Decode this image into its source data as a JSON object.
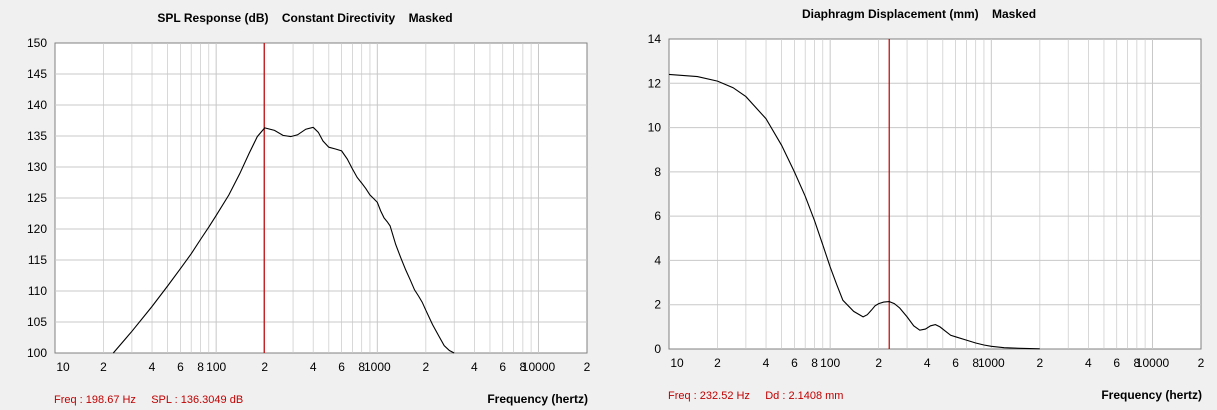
{
  "colors": {
    "background": "#f0f0f0",
    "plot_bg": "#ffffff",
    "grid": "#c8c8c8",
    "curve": "#000000",
    "cursor": "#c00000",
    "readout": "#c00000"
  },
  "chart_data": [
    {
      "type": "line",
      "title": "SPL Response (dB)    Constant Directivity    Masked",
      "xlabel": "Frequency (hertz)",
      "ylabel": "",
      "xscale": "log",
      "xlim": [
        10,
        20000
      ],
      "ylim": [
        100,
        150
      ],
      "grid": true,
      "y_ticks": [
        "150",
        "145",
        "140",
        "135",
        "130",
        "125",
        "120",
        "115",
        "110",
        "105",
        "100"
      ],
      "x_tick_labels": [
        {
          "v": 10,
          "t": "10"
        },
        {
          "v": 20,
          "t": "2"
        },
        {
          "v": 40,
          "t": "4"
        },
        {
          "v": 60,
          "t": "6"
        },
        {
          "v": 80,
          "t": "8"
        },
        {
          "v": 100,
          "t": "100"
        },
        {
          "v": 200,
          "t": "2"
        },
        {
          "v": 400,
          "t": "4"
        },
        {
          "v": 600,
          "t": "6"
        },
        {
          "v": 800,
          "t": "8"
        },
        {
          "v": 1000,
          "t": "1000"
        },
        {
          "v": 2000,
          "t": "2"
        },
        {
          "v": 4000,
          "t": "4"
        },
        {
          "v": 6000,
          "t": "6"
        },
        {
          "v": 8000,
          "t": "8"
        },
        {
          "v": 10000,
          "t": "10000"
        },
        {
          "v": 20000,
          "t": "2"
        }
      ],
      "cursor_x": 198.67,
      "readout": "Freq : 198.67 Hz     SPL : 136.3049 dB",
      "series": [
        {
          "x": [
            23,
            30,
            40,
            50,
            60,
            70,
            80,
            90,
            100,
            120,
            140,
            160,
            180,
            200,
            230,
            260,
            290,
            320,
            360,
            400,
            430,
            460,
            500,
            550,
            600,
            650,
            700,
            750,
            800,
            850,
            900,
            950,
            1000,
            1050,
            1100,
            1150,
            1200,
            1300,
            1400,
            1500,
            1600,
            1700,
            1800,
            1900,
            2000,
            2200,
            2400,
            2600,
            2800,
            3000
          ],
          "y": [
            100,
            103.5,
            107.5,
            110.8,
            113.6,
            116,
            118.3,
            120.3,
            122.2,
            125.5,
            128.9,
            132.2,
            134.9,
            136.3,
            135.9,
            135.1,
            134.9,
            135.2,
            136.1,
            136.4,
            135.6,
            134.2,
            133.2,
            132.9,
            132.6,
            131.3,
            129.7,
            128.3,
            127.4,
            126.5,
            125.5,
            124.9,
            124.3,
            122.9,
            121.8,
            121.2,
            120.5,
            117.5,
            115.3,
            113.4,
            111.8,
            110.2,
            109.2,
            108.2,
            106.9,
            104.6,
            102.8,
            101.2,
            100.4,
            100
          ]
        }
      ]
    },
    {
      "type": "line",
      "title": "Diaphragm Displacement (mm)    Masked",
      "xlabel": "Frequency (hertz)",
      "ylabel": "",
      "xscale": "log",
      "xlim": [
        10,
        20000
      ],
      "ylim": [
        0,
        14
      ],
      "grid": true,
      "y_ticks": [
        "14",
        "12",
        "10",
        "8",
        "6",
        "4",
        "2",
        "0"
      ],
      "x_tick_labels": [
        {
          "v": 10,
          "t": "10"
        },
        {
          "v": 20,
          "t": "2"
        },
        {
          "v": 40,
          "t": "4"
        },
        {
          "v": 60,
          "t": "6"
        },
        {
          "v": 80,
          "t": "8"
        },
        {
          "v": 100,
          "t": "100"
        },
        {
          "v": 200,
          "t": "2"
        },
        {
          "v": 400,
          "t": "4"
        },
        {
          "v": 600,
          "t": "6"
        },
        {
          "v": 800,
          "t": "8"
        },
        {
          "v": 1000,
          "t": "1000"
        },
        {
          "v": 2000,
          "t": "2"
        },
        {
          "v": 4000,
          "t": "4"
        },
        {
          "v": 6000,
          "t": "6"
        },
        {
          "v": 8000,
          "t": "8"
        },
        {
          "v": 10000,
          "t": "10000"
        },
        {
          "v": 20000,
          "t": "2"
        }
      ],
      "cursor_x": 232.52,
      "readout": "Freq : 232.52 Hz     Dd : 2.1408 mm",
      "series": [
        {
          "x": [
            10,
            15,
            20,
            25,
            30,
            40,
            50,
            60,
            70,
            80,
            90,
            100,
            110,
            120,
            140,
            160,
            170,
            180,
            190,
            200,
            215,
            232.52,
            250,
            270,
            300,
            330,
            360,
            390,
            420,
            450,
            480,
            520,
            560,
            600,
            700,
            800,
            900,
            1000,
            1200,
            1500,
            2000
          ],
          "y": [
            12.4,
            12.3,
            12.1,
            11.8,
            11.4,
            10.4,
            9.2,
            8.0,
            6.9,
            5.8,
            4.7,
            3.7,
            2.9,
            2.2,
            1.7,
            1.45,
            1.55,
            1.75,
            1.95,
            2.05,
            2.12,
            2.14,
            2.05,
            1.85,
            1.45,
            1.05,
            0.85,
            0.9,
            1.05,
            1.1,
            1.0,
            0.8,
            0.62,
            0.55,
            0.4,
            0.27,
            0.18,
            0.12,
            0.06,
            0.03,
            0.01
          ]
        }
      ]
    }
  ]
}
